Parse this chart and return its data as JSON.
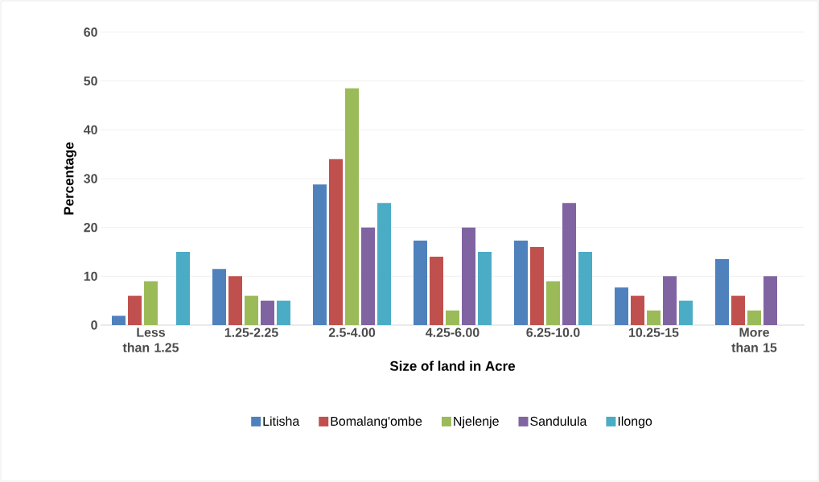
{
  "chart_data": {
    "type": "bar",
    "xlabel": "Size of land in Acre",
    "ylabel": "Percentage",
    "categories": [
      "Less than 1.25",
      "1.25-2.25",
      "2.5-4.00",
      "4.25-6.00",
      "6.25-10.0",
      "10.25-15",
      "More than 15"
    ],
    "series": [
      {
        "name": "Litisha",
        "color": "#4f81bd",
        "values": [
          1.9,
          11.5,
          28.8,
          17.3,
          17.3,
          7.7,
          13.5
        ]
      },
      {
        "name": "Bomalang'ombe",
        "color": "#c0504d",
        "values": [
          6,
          10,
          34,
          14,
          16,
          6,
          6
        ]
      },
      {
        "name": "Njelenje",
        "color": "#9bbb59",
        "values": [
          9,
          6,
          48.5,
          3,
          9,
          3,
          3
        ]
      },
      {
        "name": "Sandulula",
        "color": "#8064a2",
        "values": [
          0,
          5,
          20,
          20,
          25,
          10,
          10
        ]
      },
      {
        "name": "Ilongo",
        "color": "#4bacc6",
        "values": [
          15,
          5,
          25,
          15,
          15,
          5,
          0
        ]
      }
    ],
    "ylim": [
      0,
      60
    ],
    "yticks": [
      0,
      10,
      20,
      30,
      40,
      50,
      60
    ],
    "grid": "y",
    "legend": "bottom"
  }
}
